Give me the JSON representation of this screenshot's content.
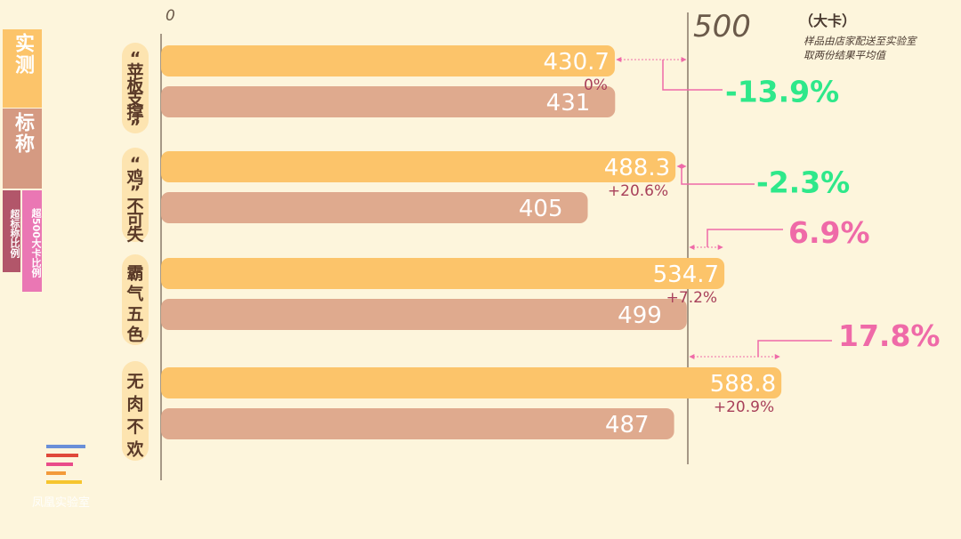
{
  "chart_data": {
    "type": "bar",
    "orientation": "horizontal",
    "axis": {
      "min_label": "0",
      "ref_label": "500",
      "ref_value": 500,
      "unit": "（大卡）"
    },
    "note": "样品由店家配送至实验室\n取两份结果平均值",
    "legend": {
      "measured": "实测",
      "nominal": "标称",
      "over_nominal": "超标称比例",
      "over_500": "超500大卡比例"
    },
    "categories": [
      {
        "label": "“苹板支撑”",
        "measured": 430.7,
        "measured_label": "430.7",
        "nominal": 431,
        "nominal_label": "431",
        "over_nominal": "0%",
        "over_500": -13.9,
        "over_500_label": "-13.9%"
      },
      {
        "label": "“鸡”不可失",
        "measured": 488.3,
        "measured_label": "488.3",
        "nominal": 405,
        "nominal_label": "405",
        "over_nominal": "+20.6%",
        "over_500": -2.3,
        "over_500_label": "-2.3%"
      },
      {
        "label": "霸气五色",
        "measured": 534.7,
        "measured_label": "534.7",
        "nominal": 499,
        "nominal_label": "499",
        "over_nominal": "+7.2%",
        "over_500": 6.9,
        "over_500_label": "6.9%"
      },
      {
        "label": "无肉不欢",
        "measured": 588.8,
        "measured_label": "588.8",
        "nominal": 487,
        "nominal_label": "487",
        "over_nominal": "+20.9%",
        "over_500": 17.8,
        "over_500_label": "17.8%"
      }
    ],
    "colors": {
      "measured": "#fcc46a",
      "nominal": "#dfaa8e",
      "positive": "#ef6aa8",
      "negative": "#2ee88a",
      "label_badge": "#fde4b0",
      "axis": "#8a7a6a",
      "over_text": "#a8405a"
    }
  },
  "logo": {
    "text": "凤凰实验室"
  }
}
